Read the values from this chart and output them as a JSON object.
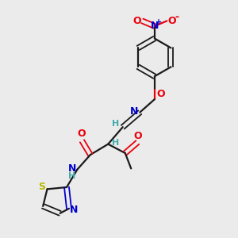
{
  "bg_color": "#ebebeb",
  "bond_color": "#1a1a1a",
  "oxygen_color": "#e8000b",
  "nitrogen_color": "#0000cc",
  "sulfur_color": "#b8b800",
  "h_color": "#44aaaa",
  "figsize": [
    3.0,
    3.0
  ],
  "dpi": 100,
  "xlim": [
    0,
    10
  ],
  "ylim": [
    0,
    10
  ]
}
